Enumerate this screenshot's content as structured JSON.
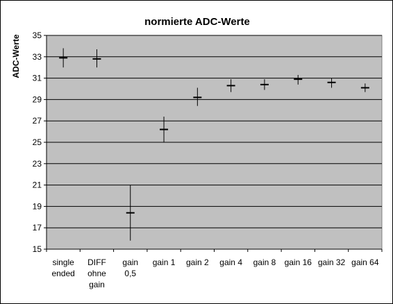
{
  "chart_data": {
    "type": "scatter",
    "title": "normierte ADC-Werte",
    "xlabel": "",
    "ylabel": "ADC-Werte",
    "ylim": [
      15,
      35
    ],
    "yticks": [
      15,
      17,
      19,
      21,
      23,
      25,
      27,
      29,
      31,
      33,
      35
    ],
    "grid": true,
    "legend": "none",
    "categories": [
      [
        "single",
        "ended"
      ],
      [
        "DIFF",
        "ohne",
        "gain"
      ],
      [
        "gain",
        "0,5"
      ],
      [
        "gain 1"
      ],
      [
        "gain 2"
      ],
      [
        "gain 4"
      ],
      [
        "gain 8"
      ],
      [
        "gain 16"
      ],
      [
        "gain 32"
      ],
      [
        "gain 64"
      ]
    ],
    "series": [
      {
        "values": [
          32.9,
          32.8,
          18.4,
          26.2,
          29.2,
          30.3,
          30.4,
          30.9,
          30.6,
          30.1
        ],
        "error_low": [
          32.0,
          32.0,
          15.8,
          25.0,
          28.4,
          29.7,
          29.9,
          30.4,
          30.1,
          29.7
        ],
        "error_high": [
          33.8,
          33.7,
          21.0,
          27.4,
          30.1,
          30.9,
          30.9,
          31.3,
          31.0,
          30.5
        ]
      }
    ],
    "colors": {
      "plot_background": "#c0c0c0",
      "gridline": "#000000",
      "marker": "#000000"
    }
  }
}
